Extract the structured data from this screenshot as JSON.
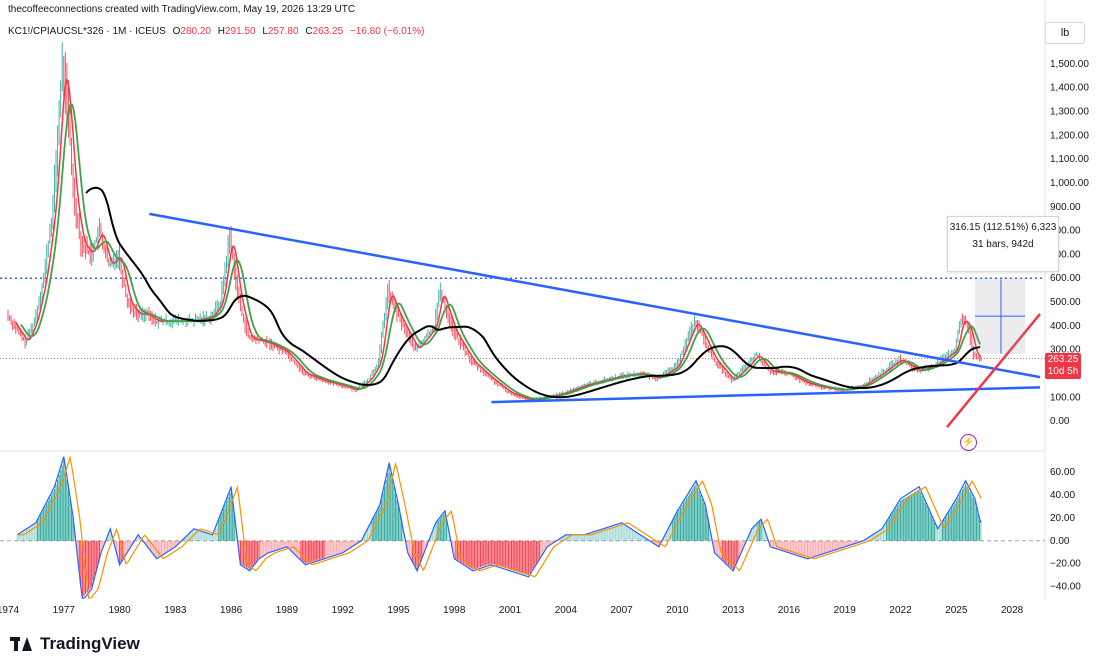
{
  "header": {
    "topline": "thecoffeeconnections created with TradingView.com, May 19, 2026 13:29 UTC",
    "symbol": "KC1!/CPIAUCSL*326 · 1M · ICEUS",
    "o_label": "O",
    "o_value": "280.20",
    "h_label": "H",
    "h_value": "291.50",
    "l_label": "L",
    "l_value": "257.80",
    "c_label": "C",
    "c_value": "263.25",
    "change": "−16.80 (−6.01%)"
  },
  "unit_button": "lb",
  "measure": {
    "line1": "316.15 (112.51%) 6,323",
    "line2": "31 bars, 942d"
  },
  "price_tag": {
    "price": "263.25",
    "countdown": "10d 5h"
  },
  "logo_text": "TradingView",
  "colors": {
    "up": "#26a69a",
    "down": "#f23645",
    "blue": "#2962ff",
    "green": "#43a047",
    "black": "#000000",
    "orange": "#ff8f00"
  },
  "chart_data": [
    {
      "type": "line",
      "title": "KC1!/CPIAUCSL*326 · 1M · ICEUS",
      "ylabel": "lb",
      "ylim": [
        -100,
        1600
      ],
      "y_ticks": [
        "0.00",
        "100.00",
        "200.00",
        "300.00",
        "400.00",
        "500.00",
        "600.00",
        "700.00",
        "800.00",
        "900.00",
        "1,000.00",
        "1,100.00",
        "1,200.00",
        "1,300.00",
        "1,400.00",
        "1,500.00"
      ],
      "x_ticks": [
        "1974",
        "1977",
        "1980",
        "1983",
        "1986",
        "1989",
        "1992",
        "1995",
        "1998",
        "2001",
        "2004",
        "2007",
        "2010",
        "2013",
        "2016",
        "2019",
        "2022",
        "2025",
        "2028"
      ],
      "series": [
        {
          "x": [
            1974.0,
            1975.0,
            1975.5,
            1976.0,
            1976.5,
            1977.0,
            1977.25,
            1977.6,
            1978.0,
            1978.5,
            1979.0,
            1979.5,
            1980.0,
            1980.5,
            1981.0,
            1981.5,
            1982.0,
            1983.0,
            1984.0,
            1985.0,
            1985.5,
            1986.0,
            1986.5,
            1987.0,
            1988.0,
            1989.0,
            1990.0,
            1991.0,
            1992.0,
            1992.8,
            1993.5,
            1994.0,
            1994.5,
            1995.0,
            1996.0,
            1997.0,
            1997.3,
            1998.0,
            1999.0,
            2000.0,
            2001.0,
            2002.0,
            2003.0,
            2004.0,
            2005.0,
            2006.0,
            2007.0,
            2008.0,
            2009.0,
            2010.0,
            2011.0,
            2011.4,
            2012.0,
            2013.0,
            2014.0,
            2014.3,
            2015.0,
            2016.0,
            2017.0,
            2018.0,
            2019.0,
            2020.0,
            2021.0,
            2022.0,
            2023.0,
            2024.0,
            2025.0,
            2025.3,
            2025.7,
            2026.0,
            2026.35
          ],
          "values": [
            450,
            330,
            420,
            600,
            900,
            1500,
            1350,
            950,
            750,
            700,
            800,
            650,
            700,
            500,
            450,
            450,
            420,
            420,
            420,
            440,
            500,
            780,
            500,
            350,
            330,
            290,
            200,
            170,
            150,
            130,
            180,
            250,
            550,
            450,
            300,
            400,
            550,
            380,
            250,
            180,
            120,
            90,
            100,
            120,
            150,
            170,
            190,
            200,
            180,
            230,
            420,
            360,
            260,
            170,
            250,
            280,
            210,
            200,
            160,
            140,
            130,
            150,
            200,
            260,
            210,
            240,
            300,
            430,
            400,
            280,
            263
          ]
        },
        {
          "type": "threshold_line",
          "value": 600
        }
      ]
    },
    {
      "type": "bar",
      "title": "",
      "ylim": [
        -50,
        75
      ],
      "y_ticks": [
        "60.00",
        "40.00",
        "20.00",
        "0.00",
        "−20.00",
        "−40.00"
      ],
      "x_ticks": [
        "1974",
        "1977",
        "1980",
        "1983",
        "1986",
        "1989",
        "1992",
        "1995",
        "1998",
        "2001",
        "2004",
        "2007",
        "2010",
        "2013",
        "2016",
        "2019",
        "2022",
        "2025",
        "2028"
      ],
      "series": [
        {
          "x": [
            1974.5,
            1975.5,
            1976.5,
            1977.0,
            1977.5,
            1978.0,
            1978.5,
            1979.0,
            1979.5,
            1980.0,
            1981.0,
            1982.0,
            1983.0,
            1984.0,
            1985.0,
            1986.0,
            1986.5,
            1987.0,
            1987.5,
            1988.0,
            1989.0,
            1990.0,
            1991.0,
            1992.0,
            1993.0,
            1994.0,
            1994.5,
            1995.0,
            1995.5,
            1996.0,
            1997.0,
            1997.5,
            1998.0,
            1999.0,
            2000.0,
            2001.0,
            2002.0,
            2003.0,
            2004.0,
            2005.0,
            2006.0,
            2007.0,
            2008.0,
            2009.0,
            2010.0,
            2011.0,
            2011.5,
            2012.0,
            2013.0,
            2014.0,
            2014.5,
            2015.0,
            2016.0,
            2017.0,
            2018.0,
            2019.0,
            2020.0,
            2021.0,
            2022.0,
            2023.0,
            2024.0,
            2025.0,
            2025.5,
            2026.0,
            2026.3
          ],
          "values": [
            5,
            15,
            45,
            70,
            20,
            -50,
            -40,
            -10,
            10,
            -20,
            5,
            -15,
            -5,
            10,
            5,
            45,
            -20,
            -25,
            -15,
            -10,
            -5,
            -20,
            -15,
            -10,
            0,
            30,
            65,
            30,
            -10,
            -25,
            15,
            25,
            -15,
            -25,
            -20,
            -25,
            -30,
            -5,
            5,
            5,
            10,
            15,
            5,
            -5,
            25,
            50,
            30,
            -10,
            -25,
            10,
            18,
            -5,
            -10,
            -15,
            -10,
            -5,
            0,
            10,
            35,
            45,
            10,
            35,
            50,
            35,
            15
          ]
        }
      ]
    }
  ]
}
